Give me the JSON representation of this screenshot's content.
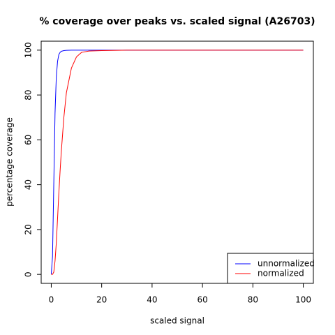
{
  "chart_data": {
    "type": "line",
    "title": "% coverage over peaks vs. scaled signal (A26703)",
    "x_label": "scaled signal",
    "y_label": "percentage coverage",
    "x": [
      0,
      0.5,
      1,
      1.5,
      2,
      2.5,
      3,
      3.5,
      4,
      5,
      6,
      8,
      10,
      12,
      15,
      20,
      30,
      50,
      100
    ],
    "series": [
      {
        "name": "unnormalized",
        "color": "#0000ff",
        "values": [
          0,
          8,
          40,
          72,
          88,
          95,
          98,
          99,
          99.5,
          99.8,
          99.9,
          100,
          100,
          100,
          100,
          100,
          100,
          100,
          100
        ]
      },
      {
        "name": "normalized",
        "color": "#ff0000",
        "values": [
          0,
          0,
          1,
          6,
          14,
          25,
          36,
          46,
          55,
          70,
          81,
          92,
          97,
          99,
          99.6,
          99.8,
          100,
          100,
          100
        ]
      }
    ],
    "xlim": [
      -4,
      104
    ],
    "ylim": [
      -4,
      104
    ],
    "xticks": [
      0,
      20,
      40,
      60,
      80,
      100
    ],
    "yticks": [
      0,
      20,
      40,
      60,
      80,
      100
    ],
    "legend": "bottom-right"
  }
}
